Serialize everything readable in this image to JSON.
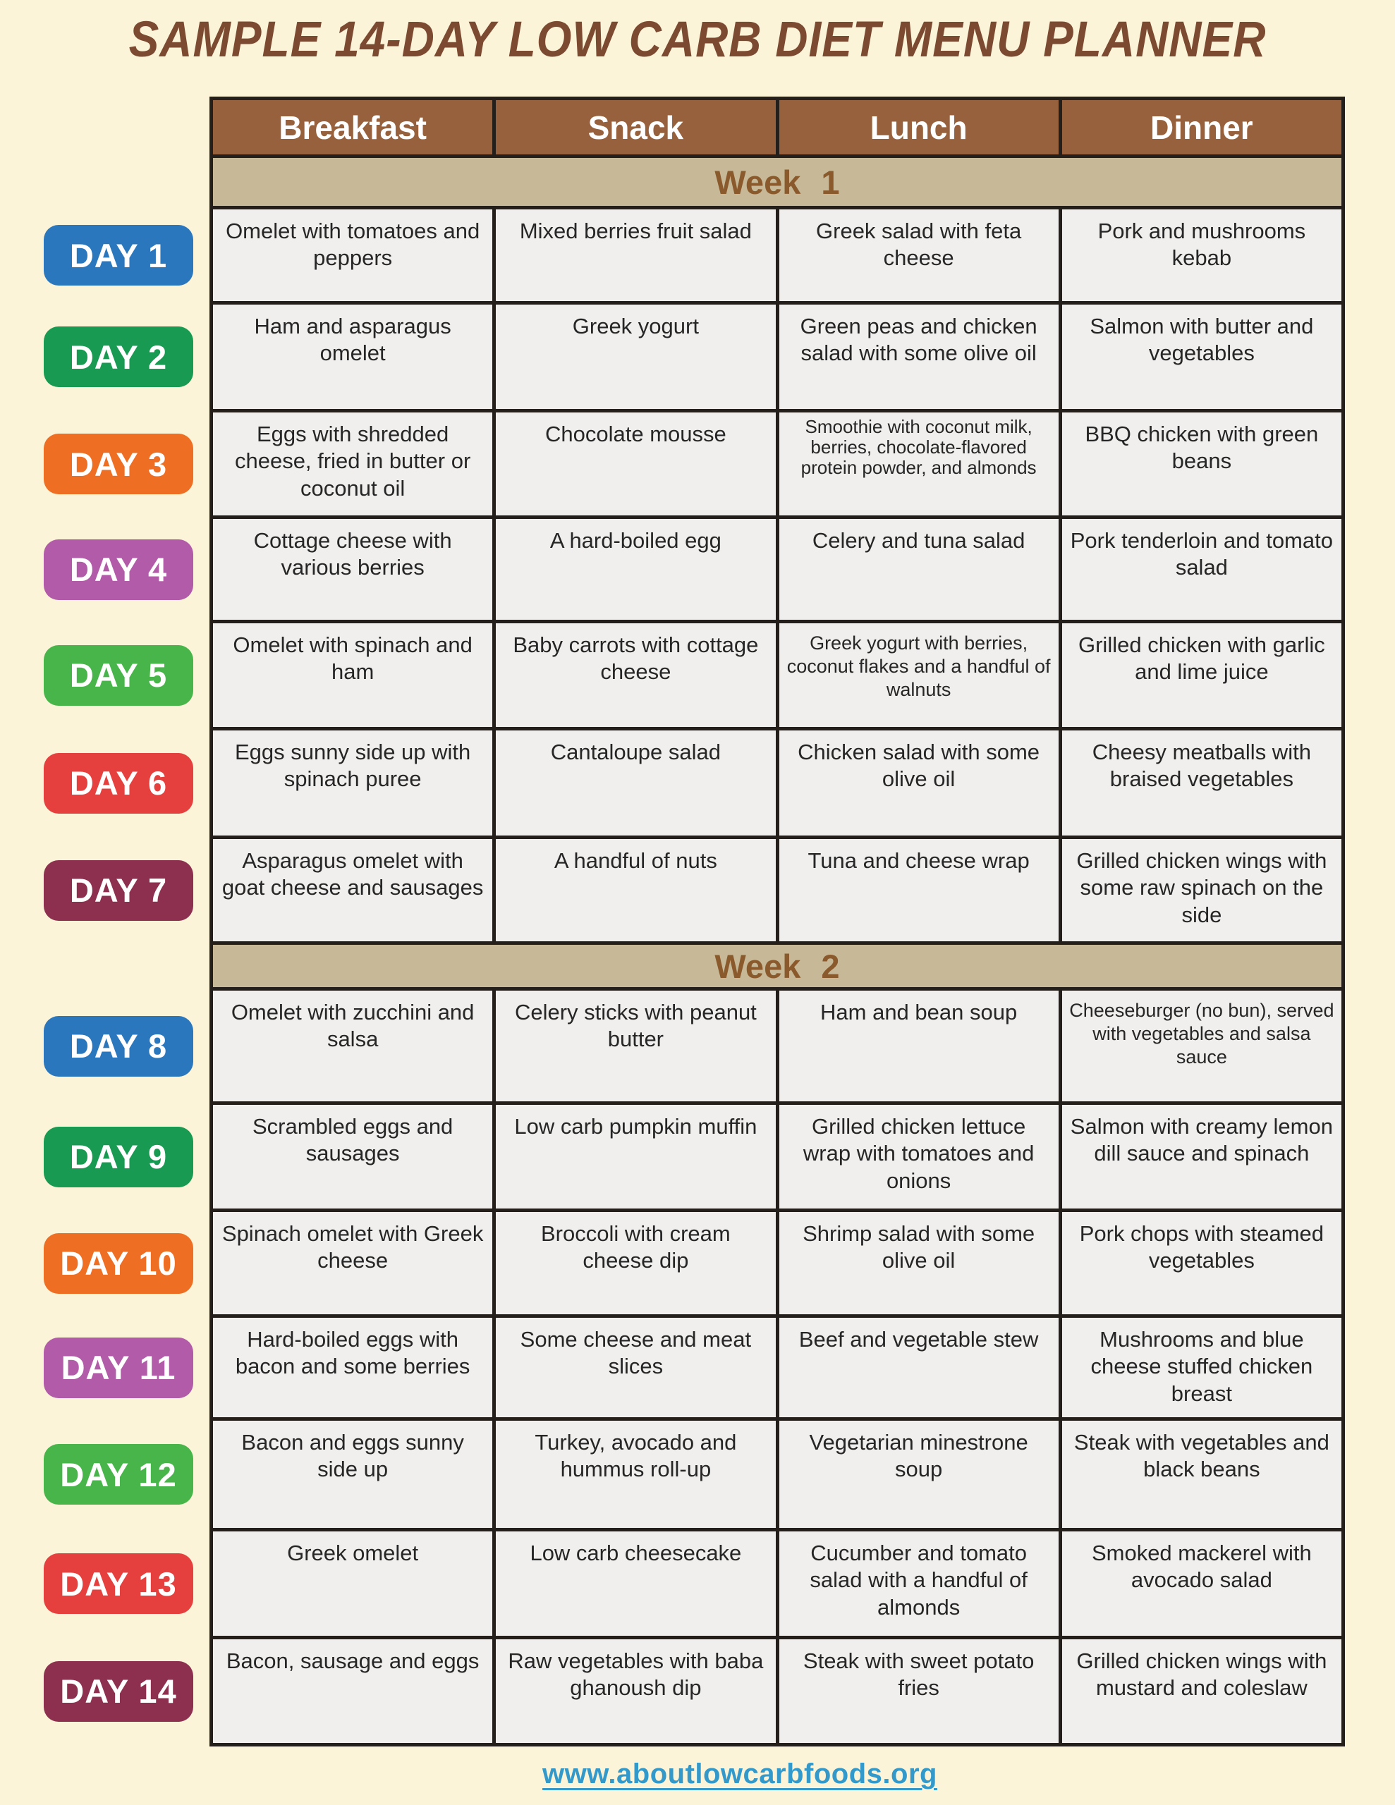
{
  "title": "SAMPLE 14-DAY LOW CARB DIET MENU PLANNER",
  "columns": [
    "Breakfast",
    "Snack",
    "Lunch",
    "Dinner"
  ],
  "colors": {
    "page_background": "#fcf4d8",
    "title_text": "#7b4a31",
    "header_background": "#96613c",
    "header_text": "#ffffff",
    "week_band_background": "#c7b998",
    "week_band_text": "#8a5a2d",
    "cell_background": "#f0efed",
    "cell_text": "#262626",
    "grid_lines": "#241f1b",
    "footer_link": "#3399cb"
  },
  "weeks": [
    {
      "label": "Week 1",
      "days": [
        {
          "day": "DAY 1",
          "color": "#2b77bd",
          "breakfast": "Omelet with tomatoes and peppers",
          "snack": "Mixed berries fruit salad",
          "lunch": "Greek salad with feta cheese",
          "dinner": "Pork and mushrooms kebab"
        },
        {
          "day": "DAY 2",
          "color": "#189a52",
          "breakfast": "Ham and asparagus omelet",
          "snack": "Greek yogurt",
          "lunch": "Green peas and chicken salad with some olive oil",
          "dinner": "Salmon with butter and vegetables"
        },
        {
          "day": "DAY 3",
          "color": "#ee6f23",
          "breakfast": "Eggs with shredded cheese, fried in butter or coconut oil",
          "snack": "Chocolate mousse",
          "lunch": "Smoothie with coconut milk, berries, chocolate-flavored protein powder, and almonds",
          "dinner": "BBQ chicken with green beans"
        },
        {
          "day": "DAY 4",
          "color": "#b25ba8",
          "breakfast": "Cottage cheese with various berries",
          "snack": "A hard-boiled egg",
          "lunch": "Celery and tuna salad",
          "dinner": "Pork tenderloin and tomato salad"
        },
        {
          "day": "DAY 5",
          "color": "#47b549",
          "breakfast": "Omelet with spinach and ham",
          "snack": "Baby carrots with cottage cheese",
          "lunch": "Greek yogurt with berries, coconut flakes and a handful of walnuts",
          "dinner": "Grilled chicken with garlic and lime juice"
        },
        {
          "day": "DAY 6",
          "color": "#e6403e",
          "breakfast": "Eggs sunny side up with spinach puree",
          "snack": "Cantaloupe salad",
          "lunch": "Chicken salad with some olive oil",
          "dinner": "Cheesy meatballs with braised vegetables"
        },
        {
          "day": "DAY 7",
          "color": "#8d304f",
          "breakfast": "Asparagus omelet with goat cheese and sausages",
          "snack": "A handful of nuts",
          "lunch": "Tuna and cheese wrap",
          "dinner": "Grilled chicken wings with some raw spinach on the side"
        }
      ]
    },
    {
      "label": "Week 2",
      "days": [
        {
          "day": "DAY 8",
          "color": "#2b77bd",
          "breakfast": "Omelet with zucchini and salsa",
          "snack": "Celery sticks with peanut butter",
          "lunch": "Ham and bean soup",
          "dinner": "Cheeseburger (no bun), served with vegetables and salsa sauce"
        },
        {
          "day": "DAY 9",
          "color": "#189a52",
          "breakfast": "Scrambled eggs and sausages",
          "snack": "Low carb pumpkin muffin",
          "lunch": "Grilled chicken lettuce wrap with tomatoes and onions",
          "dinner": "Salmon with creamy lemon dill sauce and spinach"
        },
        {
          "day": "DAY 10",
          "color": "#ee6f23",
          "breakfast": "Spinach omelet with Greek cheese",
          "snack": "Broccoli with cream cheese dip",
          "lunch": "Shrimp salad with some olive oil",
          "dinner": "Pork chops with steamed vegetables"
        },
        {
          "day": "DAY 11",
          "color": "#b25ba8",
          "breakfast": "Hard-boiled eggs with bacon and some berries",
          "snack": "Some cheese and meat slices",
          "lunch": "Beef and vegetable stew",
          "dinner": "Mushrooms and blue cheese stuffed chicken breast"
        },
        {
          "day": "DAY 12",
          "color": "#47b549",
          "breakfast": "Bacon and eggs sunny side up",
          "snack": "Turkey, avocado and hummus roll-up",
          "lunch": "Vegetarian minestrone soup",
          "dinner": "Steak with vegetables and black beans"
        },
        {
          "day": "DAY 13",
          "color": "#e6403e",
          "breakfast": "Greek omelet",
          "snack": "Low carb cheesecake",
          "lunch": "Cucumber and tomato salad with a handful of almonds",
          "dinner": "Smoked mackerel with avocado salad"
        },
        {
          "day": "DAY 14",
          "color": "#8d304f",
          "breakfast": "Bacon, sausage and eggs",
          "snack": "Raw vegetables with baba ghanoush dip",
          "lunch": "Steak with sweet potato fries",
          "dinner": "Grilled chicken wings with mustard and coleslaw"
        }
      ]
    }
  ],
  "footer": {
    "url_label": "www.aboutlowcarbfoods.org"
  }
}
